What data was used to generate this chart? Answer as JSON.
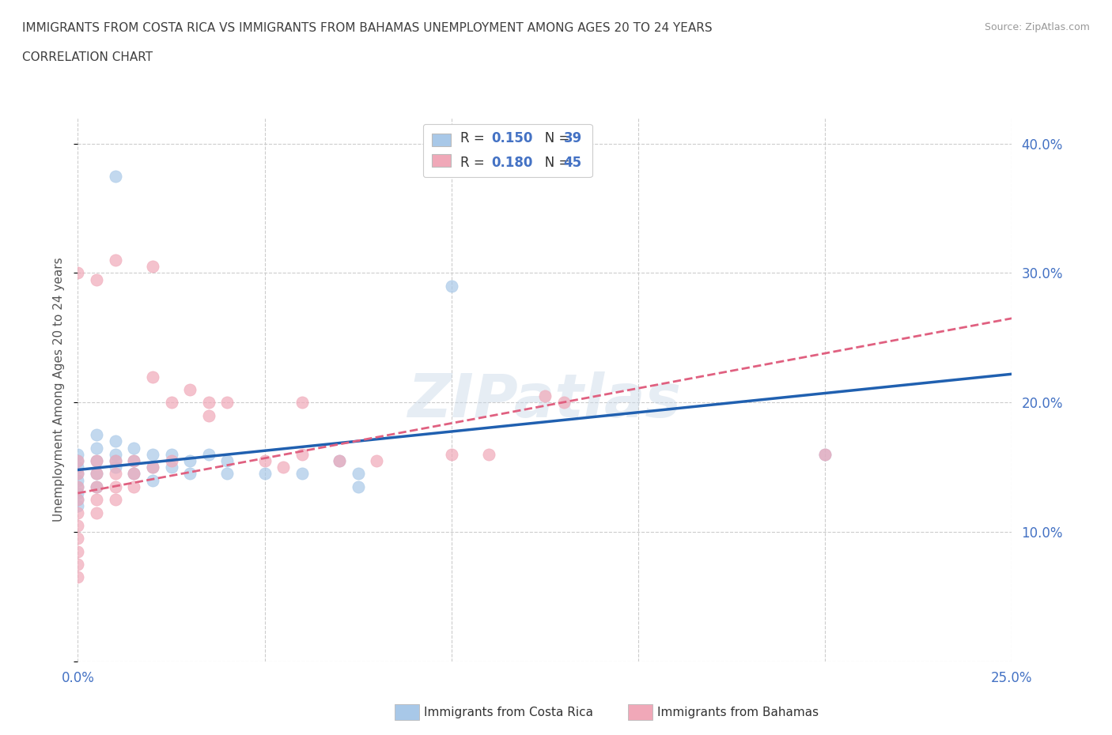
{
  "title_line1": "IMMIGRANTS FROM COSTA RICA VS IMMIGRANTS FROM BAHAMAS UNEMPLOYMENT AMONG AGES 20 TO 24 YEARS",
  "title_line2": "CORRELATION CHART",
  "source_text": "Source: ZipAtlas.com",
  "ylabel": "Unemployment Among Ages 20 to 24 years",
  "xlim": [
    0.0,
    0.25
  ],
  "ylim": [
    0.0,
    0.42
  ],
  "watermark": "ZIPatlas",
  "color_blue": "#a8c8e8",
  "color_pink": "#f0a8b8",
  "color_blue_line": "#2060b0",
  "color_pink_line": "#e06080",
  "color_title": "#404040",
  "color_ticks": "#4472c4",
  "legend_label_1": "Immigrants from Costa Rica",
  "legend_label_2": "Immigrants from Bahamas",
  "cr_x": [
    0.0,
    0.0,
    0.0,
    0.0,
    0.0,
    0.0,
    0.0,
    0.0,
    0.0,
    0.005,
    0.005,
    0.005,
    0.005,
    0.005,
    0.01,
    0.01,
    0.01,
    0.01,
    0.015,
    0.015,
    0.015,
    0.02,
    0.02,
    0.02,
    0.025,
    0.025,
    0.03,
    0.03,
    0.035,
    0.04,
    0.04,
    0.05,
    0.06,
    0.07,
    0.075,
    0.075,
    0.1,
    0.2,
    0.01
  ],
  "cr_y": [
    0.16,
    0.155,
    0.15,
    0.145,
    0.14,
    0.135,
    0.13,
    0.125,
    0.12,
    0.175,
    0.165,
    0.155,
    0.145,
    0.135,
    0.17,
    0.16,
    0.155,
    0.15,
    0.165,
    0.155,
    0.145,
    0.16,
    0.15,
    0.14,
    0.16,
    0.15,
    0.155,
    0.145,
    0.16,
    0.155,
    0.145,
    0.145,
    0.145,
    0.155,
    0.145,
    0.135,
    0.29,
    0.16,
    0.375
  ],
  "bh_x": [
    0.0,
    0.0,
    0.0,
    0.0,
    0.0,
    0.0,
    0.0,
    0.0,
    0.0,
    0.0,
    0.005,
    0.005,
    0.005,
    0.005,
    0.005,
    0.01,
    0.01,
    0.01,
    0.01,
    0.015,
    0.015,
    0.015,
    0.02,
    0.02,
    0.025,
    0.025,
    0.03,
    0.035,
    0.035,
    0.04,
    0.05,
    0.055,
    0.06,
    0.06,
    0.07,
    0.08,
    0.1,
    0.11,
    0.125,
    0.13,
    0.2,
    0.01,
    0.02,
    0.0,
    0.005
  ],
  "bh_y": [
    0.155,
    0.145,
    0.135,
    0.125,
    0.115,
    0.105,
    0.095,
    0.085,
    0.075,
    0.065,
    0.155,
    0.145,
    0.135,
    0.125,
    0.115,
    0.155,
    0.145,
    0.135,
    0.125,
    0.155,
    0.145,
    0.135,
    0.22,
    0.15,
    0.2,
    0.155,
    0.21,
    0.2,
    0.19,
    0.2,
    0.155,
    0.15,
    0.2,
    0.16,
    0.155,
    0.155,
    0.16,
    0.16,
    0.205,
    0.2,
    0.16,
    0.31,
    0.305,
    0.3,
    0.295
  ]
}
